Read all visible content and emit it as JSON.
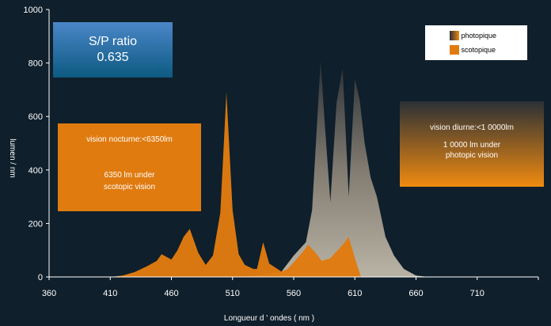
{
  "chart_data": {
    "type": "area",
    "xlabel": "Longueur d ' ondes ( nm )",
    "ylabel": "lumen / nm",
    "xlim": [
      360,
      760
    ],
    "ylim": [
      0,
      1000
    ],
    "x_ticks": [
      360,
      410,
      460,
      510,
      560,
      610,
      660,
      710
    ],
    "y_ticks": [
      0,
      200,
      400,
      600,
      800,
      1000
    ],
    "legend_position": "top-right",
    "series": [
      {
        "name": "scotopique",
        "color": "#e07b10",
        "points": [
          [
            410,
            0
          ],
          [
            420,
            5
          ],
          [
            430,
            18
          ],
          [
            440,
            40
          ],
          [
            448,
            60
          ],
          [
            452,
            85
          ],
          [
            460,
            65
          ],
          [
            465,
            100
          ],
          [
            470,
            150
          ],
          [
            475,
            180
          ],
          [
            482,
            90
          ],
          [
            488,
            45
          ],
          [
            494,
            80
          ],
          [
            500,
            240
          ],
          [
            505,
            690
          ],
          [
            510,
            250
          ],
          [
            515,
            85
          ],
          [
            520,
            45
          ],
          [
            527,
            30
          ],
          [
            530,
            30
          ],
          [
            535,
            130
          ],
          [
            540,
            50
          ],
          [
            550,
            20
          ],
          [
            555,
            30
          ],
          [
            565,
            80
          ],
          [
            572,
            120
          ],
          [
            578,
            90
          ],
          [
            583,
            60
          ],
          [
            590,
            70
          ],
          [
            600,
            120
          ],
          [
            605,
            150
          ],
          [
            610,
            70
          ],
          [
            615,
            0
          ]
        ]
      },
      {
        "name": "photopique",
        "color": "#8a8276",
        "points": [
          [
            520,
            0
          ],
          [
            550,
            20
          ],
          [
            560,
            80
          ],
          [
            570,
            130
          ],
          [
            575,
            250
          ],
          [
            582,
            810
          ],
          [
            585,
            600
          ],
          [
            590,
            280
          ],
          [
            595,
            650
          ],
          [
            600,
            780
          ],
          [
            605,
            300
          ],
          [
            610,
            740
          ],
          [
            614,
            660
          ],
          [
            618,
            500
          ],
          [
            623,
            370
          ],
          [
            628,
            300
          ],
          [
            635,
            150
          ],
          [
            642,
            80
          ],
          [
            650,
            30
          ],
          [
            660,
            5
          ],
          [
            670,
            0
          ]
        ]
      }
    ]
  },
  "sp_box": {
    "line1": "S/P ratio",
    "line2": "0.635"
  },
  "night_box": {
    "line1": "vision nocturne:<6350lm",
    "line2": "6350 lm under",
    "line3": "scotopic vision"
  },
  "day_box": {
    "line1": "vision diurne:<1 0000lm",
    "line2": "1 0000 lm under",
    "line3": "photopic vision"
  },
  "legend": {
    "items": [
      {
        "label": "photopique"
      },
      {
        "label": "scotopique"
      }
    ]
  }
}
